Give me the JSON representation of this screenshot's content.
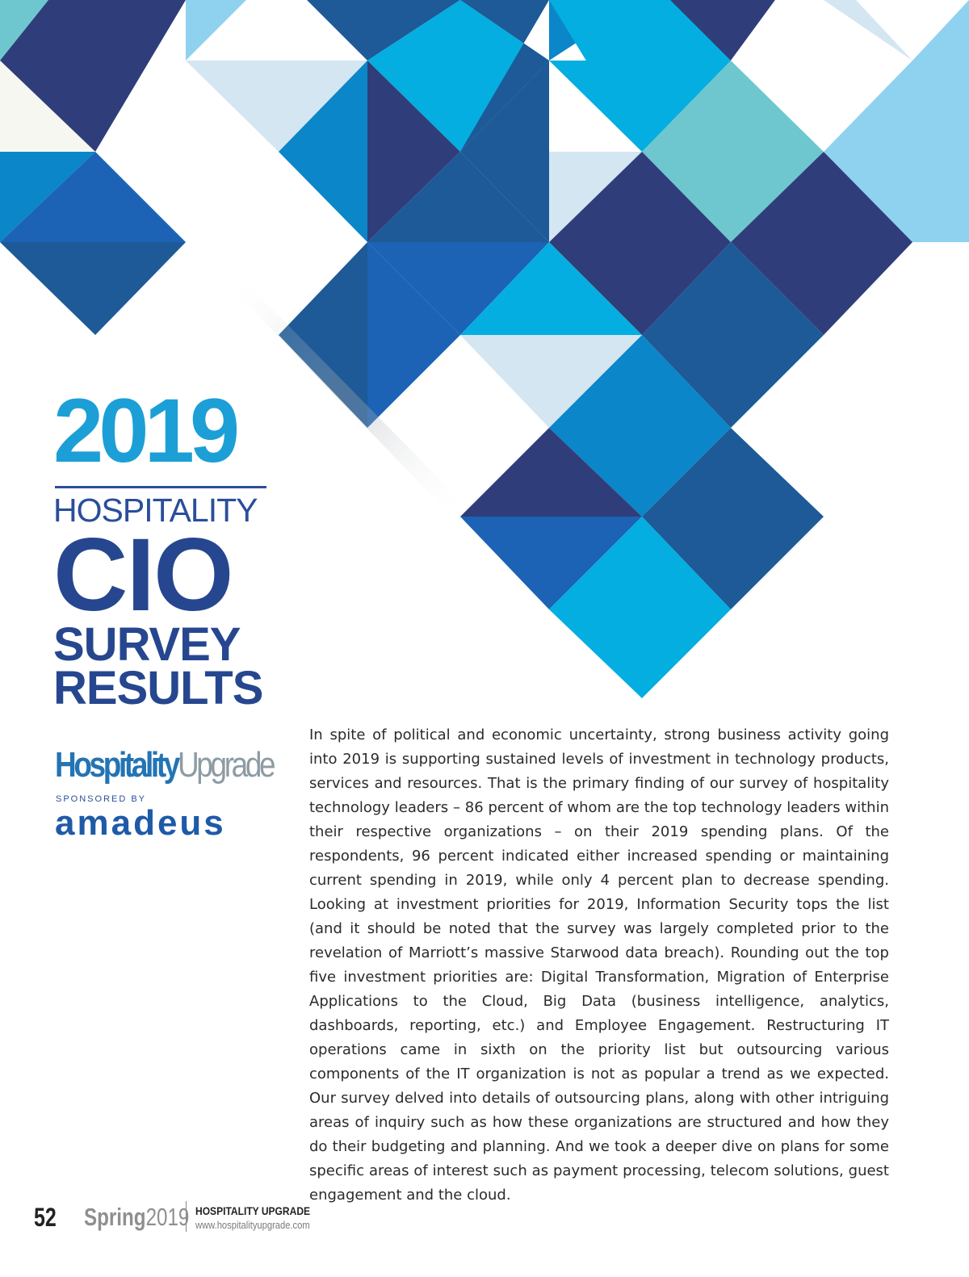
{
  "title": {
    "year": "2019",
    "line1": "HOSPITALITY",
    "line2": "CIO",
    "line3": "SURVEY",
    "line4": "RESULTS"
  },
  "logos": {
    "publication_part1": "Hospitality",
    "publication_part2": "Upgrade",
    "sponsored_by": "SPONSORED BY",
    "sponsor": "amadeus"
  },
  "intro_paragraph": "In spite of political and economic uncertainty, strong business activity going into 2019 is supporting sustained levels of investment in technology products, services and resources. That is the primary finding of our survey of hospitality technology leaders – 86 percent of whom are the top technology leaders within their respective organizations – on their 2019 spending plans. Of the respondents, 96 percent indicated either increased spending or maintaining current spending in 2019, while only 4 percent plan to decrease spending. Looking at investment priorities for 2019, Information Security tops the list (and it should be noted that the survey was largely completed prior to the revelation of Marriott’s massive Starwood data breach). Rounding out the top five investment priorities are: Digital Transformation, Migration of Enterprise Applications to the Cloud, Big Data (business intelligence, analytics, dashboards, reporting, etc.) and Employee Engagement. Restructuring IT operations came in sixth on the priority list but outsourcing various components of the IT organization is not as popular a trend as we expected. Our survey delved into details of outsourcing plans, along with other intriguing areas of inquiry such as how these organizations are structured and how they do their budgeting and planning. And we took a deeper dive on plans for some specific areas of interest such as payment processing, telecom solutions, guest engagement and the cloud.",
  "footer": {
    "page_number": "52",
    "season": "Spring",
    "season_year": "2019",
    "publication": "HOSPITALITY UPGRADE",
    "url": "www.hospitalityupgrade.com"
  },
  "colors": {
    "navy": "#2f3e7a",
    "royal": "#1d5a97",
    "blue": "#0b86c8",
    "cyan": "#04aee0",
    "sky": "#8fd2f0",
    "pale": "#d3e6f2",
    "teal": "#6ec7cf",
    "cream": "#f6f7f1",
    "title_blue": "#1c9fd6",
    "title_navy": "#26478f"
  }
}
